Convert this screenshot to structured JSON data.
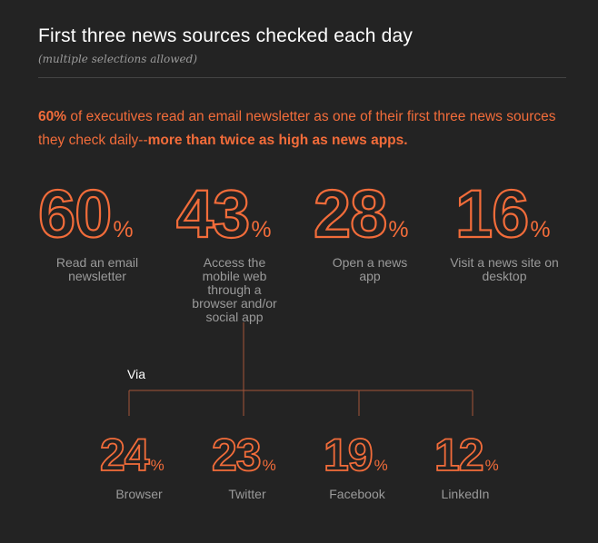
{
  "header": {
    "title": "First three news sources checked each day",
    "subtitle": "(multiple selections allowed)"
  },
  "lead": {
    "highlight": "60%",
    "text": " of executives read an email newsletter as one of their first three news sources they check daily--",
    "emphasis": "more than twice as high as news apps."
  },
  "colors": {
    "accent": "#f26c3a",
    "muted": "#9a9a9a",
    "line": "#a5553a",
    "background": "#232323"
  },
  "via_label": "Via",
  "chart_data": {
    "type": "table",
    "main": [
      {
        "value": 60,
        "unit": "%",
        "label": "Read an email newsletter"
      },
      {
        "value": 43,
        "unit": "%",
        "label": "Access the mobile web through a browser and/or social app"
      },
      {
        "value": 28,
        "unit": "%",
        "label": "Open a news app"
      },
      {
        "value": 16,
        "unit": "%",
        "label": "Visit a news site on desktop"
      }
    ],
    "breakdown_of": "Access the mobile web through a browser and/or social app",
    "sub": [
      {
        "value": 24,
        "unit": "%",
        "label": "Browser"
      },
      {
        "value": 23,
        "unit": "%",
        "label": "Twitter"
      },
      {
        "value": 19,
        "unit": "%",
        "label": "Facebook"
      },
      {
        "value": 12,
        "unit": "%",
        "label": "LinkedIn"
      }
    ]
  }
}
